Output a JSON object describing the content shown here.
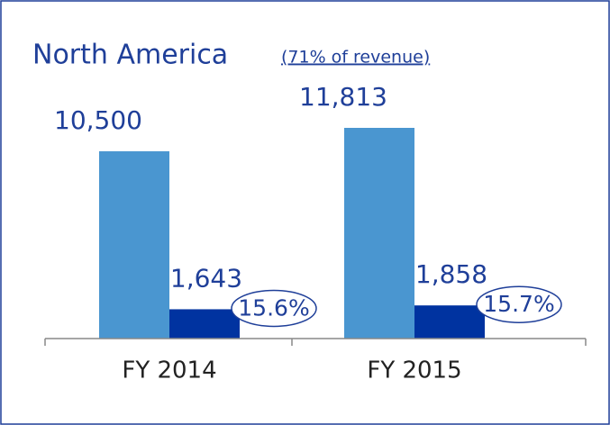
{
  "chart_data": {
    "type": "bar",
    "title": "North America",
    "subtitle": "(71% of revenue)",
    "categories": [
      "FY 2014",
      "FY 2015"
    ],
    "series": [
      {
        "color": "#4a96d0",
        "values": [
          10500,
          11813
        ],
        "value_labels": [
          "10,500",
          "11,813"
        ]
      },
      {
        "color": "#0033a0",
        "values": [
          1643,
          1858
        ],
        "value_labels": [
          "1,643",
          "1,858"
        ]
      }
    ],
    "annotations": [
      "15.6%",
      "15.7%"
    ],
    "ylim": [
      0,
      12000
    ]
  }
}
